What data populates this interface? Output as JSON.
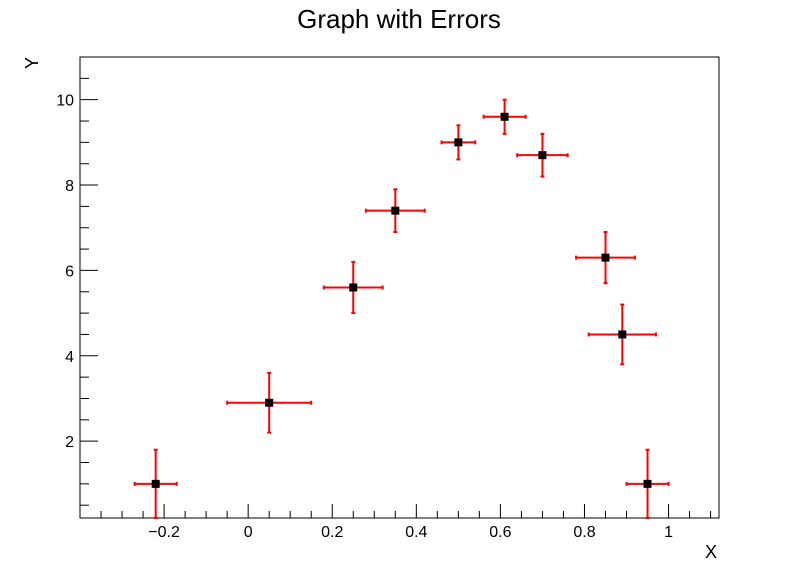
{
  "chart_data": {
    "type": "scatter",
    "title": "Graph with Errors",
    "xlabel": "X",
    "ylabel": "Y",
    "xlim": [
      -0.4,
      1.12
    ],
    "ylim": [
      0.2,
      11.0
    ],
    "x_ticks": [
      -0.2,
      0,
      0.2,
      0.4,
      0.6,
      0.8,
      1
    ],
    "x_tick_labels": [
      "−0.2",
      "0",
      "0.2",
      "0.4",
      "0.6",
      "0.8",
      "1"
    ],
    "y_ticks": [
      2,
      4,
      6,
      8,
      10
    ],
    "y_tick_labels": [
      "2",
      "4",
      "6",
      "8",
      "10"
    ],
    "grid": false,
    "marker_color": "#000000",
    "error_color": "#ff0000",
    "points": [
      {
        "x": -0.22,
        "y": 1.0,
        "ex": 0.05,
        "ey": 0.8
      },
      {
        "x": 0.05,
        "y": 2.9,
        "ex": 0.1,
        "ey": 0.7
      },
      {
        "x": 0.25,
        "y": 5.6,
        "ex": 0.07,
        "ey": 0.6
      },
      {
        "x": 0.35,
        "y": 7.4,
        "ex": 0.07,
        "ey": 0.5
      },
      {
        "x": 0.5,
        "y": 9.0,
        "ex": 0.04,
        "ey": 0.4
      },
      {
        "x": 0.61,
        "y": 9.6,
        "ex": 0.05,
        "ey": 0.4
      },
      {
        "x": 0.7,
        "y": 8.7,
        "ex": 0.06,
        "ey": 0.5
      },
      {
        "x": 0.85,
        "y": 6.3,
        "ex": 0.07,
        "ey": 0.6
      },
      {
        "x": 0.89,
        "y": 4.5,
        "ex": 0.08,
        "ey": 0.7
      },
      {
        "x": 0.95,
        "y": 1.0,
        "ex": 0.05,
        "ey": 0.8
      }
    ]
  }
}
